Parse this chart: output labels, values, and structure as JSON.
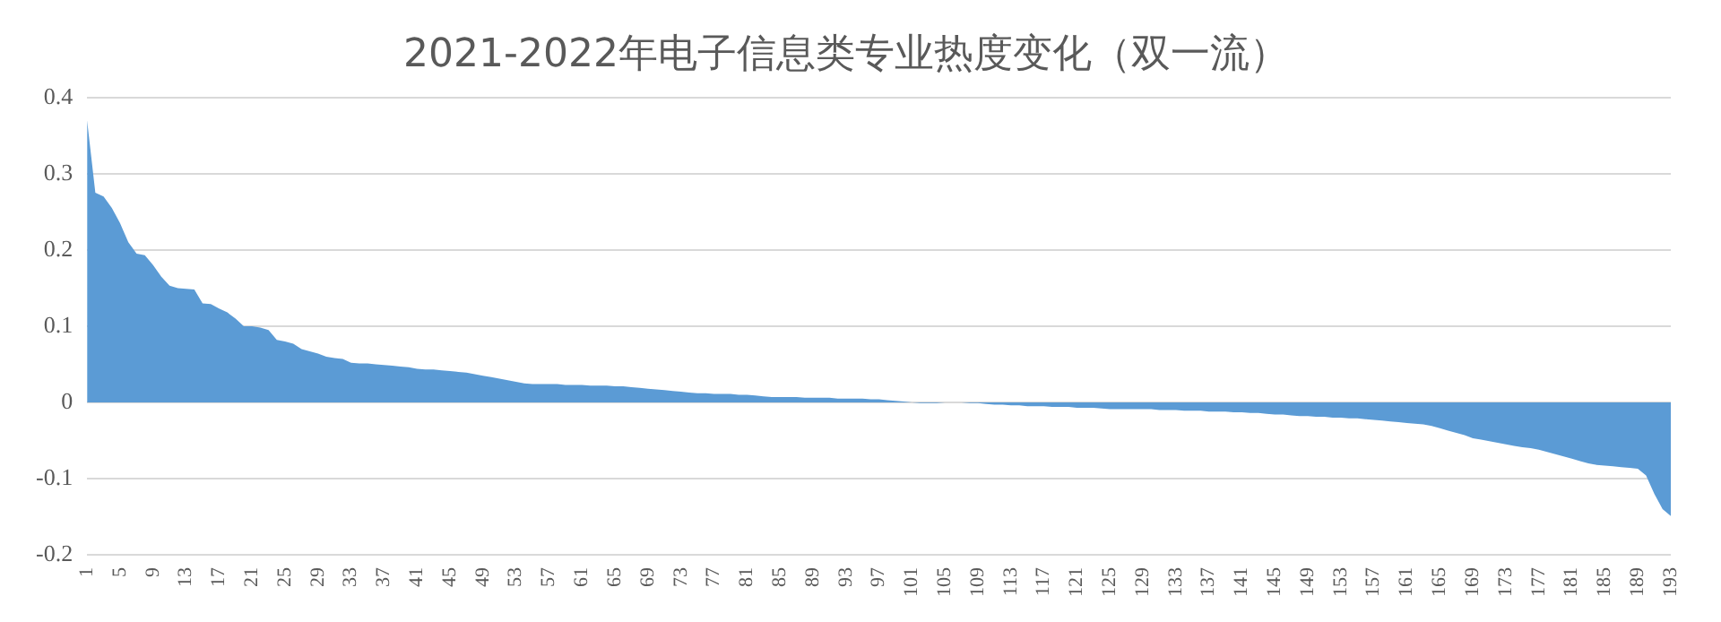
{
  "chart_data": {
    "type": "area",
    "title": "2021-2022年电子信息类专业热度变化（双一流）",
    "categories": [
      "1",
      null,
      null,
      null,
      "5",
      null,
      null,
      null,
      "9",
      null,
      null,
      null,
      "13",
      null,
      null,
      null,
      "17",
      null,
      null,
      null,
      "21",
      null,
      null,
      null,
      "25",
      null,
      null,
      null,
      "29",
      null,
      null,
      null,
      "33",
      null,
      null,
      null,
      "37",
      null,
      null,
      null,
      "41",
      null,
      null,
      null,
      "45",
      null,
      null,
      null,
      "49",
      null,
      null,
      null,
      "53",
      null,
      null,
      null,
      "57",
      null,
      null,
      null,
      "61",
      null,
      null,
      null,
      "65",
      null,
      null,
      null,
      "69",
      null,
      null,
      null,
      "73",
      null,
      null,
      null,
      "77",
      null,
      null,
      null,
      "81",
      null,
      null,
      null,
      "85",
      null,
      null,
      null,
      "89",
      null,
      null,
      null,
      "93",
      null,
      null,
      null,
      "97",
      null,
      null,
      null,
      "101",
      null,
      null,
      null,
      "105",
      null,
      null,
      null,
      "109",
      null,
      null,
      null,
      "113",
      null,
      null,
      null,
      "117",
      null,
      null,
      null,
      "121",
      null,
      null,
      null,
      "125",
      null,
      null,
      null,
      "129",
      null,
      null,
      null,
      "133",
      null,
      null,
      null,
      "137",
      null,
      null,
      null,
      "141",
      null,
      null,
      null,
      "145",
      null,
      null,
      null,
      "149",
      null,
      null,
      null,
      "153",
      null,
      null,
      null,
      "157",
      null,
      null,
      null,
      "161",
      null,
      null,
      null,
      "165",
      null,
      null,
      null,
      "169",
      null,
      null,
      null,
      "173",
      null,
      null,
      null,
      "177",
      null,
      null,
      null,
      "181",
      null,
      null,
      null,
      "185",
      null,
      null,
      null,
      "189",
      null,
      null,
      null,
      "193"
    ],
    "series": [
      {
        "color": "#5b9bd5",
        "values": [
          0.37,
          0.275,
          0.27,
          0.255,
          0.235,
          0.21,
          0.195,
          0.193,
          0.18,
          0.165,
          0.153,
          0.15,
          0.149,
          0.148,
          0.13,
          0.129,
          0.123,
          0.118,
          0.11,
          0.1,
          0.1,
          0.098,
          0.095,
          0.082,
          0.08,
          0.077,
          0.07,
          0.067,
          0.064,
          0.06,
          0.058,
          0.057,
          0.052,
          0.051,
          0.051,
          0.05,
          0.049,
          0.048,
          0.047,
          0.046,
          0.044,
          0.043,
          0.043,
          0.042,
          0.041,
          0.04,
          0.039,
          0.037,
          0.035,
          0.033,
          0.031,
          0.029,
          0.027,
          0.025,
          0.024,
          0.024,
          0.024,
          0.024,
          0.023,
          0.023,
          0.023,
          0.022,
          0.022,
          0.022,
          0.021,
          0.021,
          0.02,
          0.019,
          0.018,
          0.017,
          0.016,
          0.015,
          0.014,
          0.013,
          0.012,
          0.012,
          0.011,
          0.011,
          0.011,
          0.01,
          0.01,
          0.009,
          0.008,
          0.007,
          0.007,
          0.007,
          0.007,
          0.006,
          0.006,
          0.006,
          0.006,
          0.005,
          0.005,
          0.005,
          0.005,
          0.004,
          0.004,
          0.003,
          0.002,
          0.001,
          0,
          -0.001,
          -0.001,
          -0.001,
          0,
          0,
          0,
          -0.001,
          -0.001,
          -0.002,
          -0.003,
          -0.003,
          -0.004,
          -0.004,
          -0.005,
          -0.005,
          -0.005,
          -0.006,
          -0.006,
          -0.006,
          -0.007,
          -0.007,
          -0.007,
          -0.008,
          -0.009,
          -0.009,
          -0.009,
          -0.009,
          -0.009,
          -0.009,
          -0.01,
          -0.01,
          -0.01,
          -0.011,
          -0.011,
          -0.011,
          -0.012,
          -0.012,
          -0.012,
          -0.013,
          -0.013,
          -0.014,
          -0.014,
          -0.015,
          -0.016,
          -0.016,
          -0.017,
          -0.018,
          -0.018,
          -0.019,
          -0.019,
          -0.02,
          -0.02,
          -0.021,
          -0.021,
          -0.022,
          -0.023,
          -0.024,
          -0.025,
          -0.026,
          -0.027,
          -0.028,
          -0.029,
          -0.031,
          -0.034,
          -0.037,
          -0.04,
          -0.043,
          -0.047,
          -0.049,
          -0.051,
          -0.053,
          -0.055,
          -0.057,
          -0.059,
          -0.06,
          -0.062,
          -0.065,
          -0.068,
          -0.071,
          -0.074,
          -0.077,
          -0.08,
          -0.082,
          -0.083,
          -0.084,
          -0.085,
          -0.086,
          -0.087,
          -0.096,
          -0.12,
          -0.14,
          -0.149
        ]
      }
    ],
    "ylim": [
      -0.2,
      0.4
    ],
    "yticks": [
      -0.2,
      -0.1,
      0,
      0.1,
      0.2,
      0.3,
      0.4
    ],
    "grid": "y",
    "legend": false,
    "marker": "none"
  }
}
